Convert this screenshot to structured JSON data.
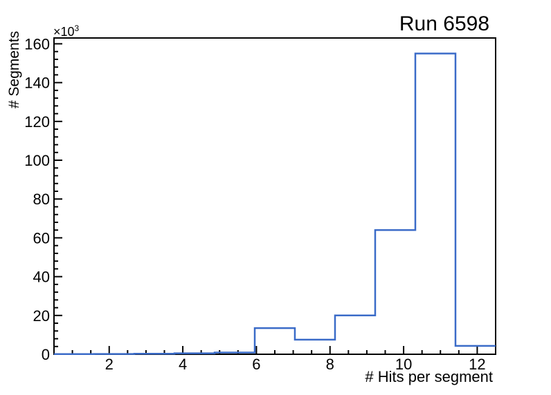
{
  "chart_data": {
    "type": "bar",
    "subtype": "step-histogram-outline",
    "title": "Run 6598",
    "xlabel": "# Hits per segment",
    "ylabel": "# Segments",
    "y_axis_multiplier": {
      "base": "×10",
      "exponent": "3"
    },
    "xlim": [
      0.5,
      12.5
    ],
    "ylim": [
      0,
      163000
    ],
    "n_bins": 11,
    "bin_edges": [
      0.5,
      1.591,
      2.682,
      3.773,
      4.864,
      5.955,
      7.045,
      8.136,
      9.227,
      10.318,
      11.409,
      12.5
    ],
    "counts": [
      100,
      150,
      250,
      500,
      900,
      13500,
      7500,
      20000,
      64000,
      155000,
      4300
    ],
    "x_major_ticks": [
      2,
      4,
      6,
      8,
      10,
      12
    ],
    "x_major_tick_labels": [
      "2",
      "4",
      "6",
      "8",
      "10",
      "12"
    ],
    "x_minor_tick_step": 0.5,
    "y_major_ticks": [
      0,
      20000,
      40000,
      60000,
      80000,
      100000,
      120000,
      140000,
      160000
    ],
    "y_major_tick_labels": [
      "0",
      "20",
      "40",
      "60",
      "80",
      "100",
      "120",
      "140",
      "160"
    ],
    "y_minor_tick_step": 4000,
    "grid": false,
    "legend": null,
    "colors": {
      "line": "#3a6bc8",
      "axis": "#000000",
      "text": "#000000",
      "background": "#ffffff"
    }
  }
}
